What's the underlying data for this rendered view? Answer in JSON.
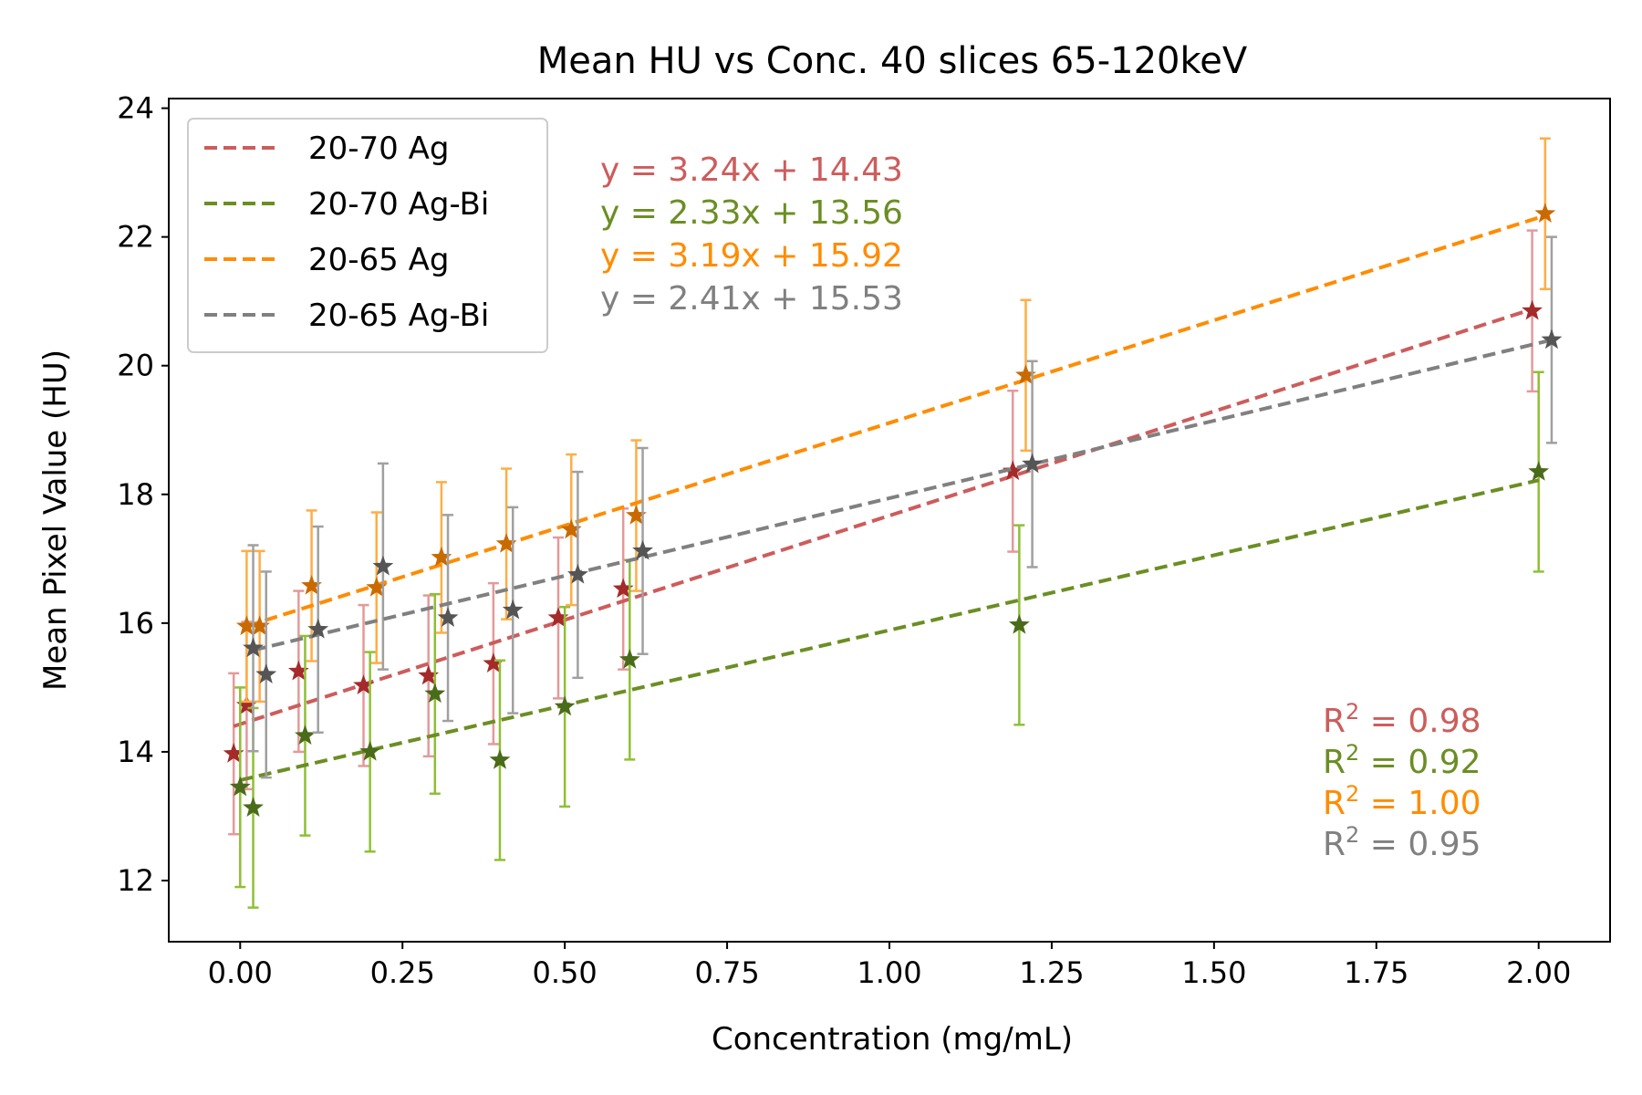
{
  "chart_data": {
    "type": "scatter",
    "title": "Mean HU vs Conc. 40 slices 65-120keV",
    "xlabel": "Concentration (mg/mL)",
    "ylabel": "Mean Pixel Value (HU)",
    "xlim": [
      -0.11,
      2.11
    ],
    "ylim": [
      11.05,
      24.15
    ],
    "xticks": [
      0,
      0.25,
      0.5,
      0.75,
      1.0,
      1.25,
      1.5,
      1.75,
      2.0
    ],
    "xtick_labels": [
      "0.00",
      "0.25",
      "0.50",
      "0.75",
      "1.00",
      "1.25",
      "1.50",
      "1.75",
      "2.00"
    ],
    "yticks": [
      12,
      14,
      16,
      18,
      20,
      22,
      24
    ],
    "ytick_labels": [
      "12",
      "14",
      "16",
      "18",
      "20",
      "22",
      "24"
    ],
    "legend_position": "top-left",
    "series": [
      {
        "name": "20-70 Ag",
        "line_color": "#cd5c5c",
        "marker_color": "#a52a2a",
        "err_color": "#e39a9a",
        "slope": 3.24,
        "intercept": 14.43,
        "equation": "y = 3.24x + 14.43",
        "r2": "0.98",
        "x": [
          -0.01,
          0.01,
          0.09,
          0.19,
          0.29,
          0.39,
          0.49,
          0.59,
          1.19,
          1.99
        ],
        "y": [
          13.97,
          14.72,
          15.25,
          15.03,
          15.18,
          15.37,
          16.08,
          16.53,
          18.36,
          20.85
        ],
        "err": [
          1.25,
          1.3,
          1.25,
          1.25,
          1.25,
          1.25,
          1.25,
          1.25,
          1.25,
          1.25
        ]
      },
      {
        "name": "20-70 Ag-Bi",
        "line_color": "#6b8e23",
        "marker_color": "#4a6b1a",
        "err_color": "#8fbf35",
        "slope": 2.33,
        "intercept": 13.56,
        "equation": "y = 2.33x + 13.56",
        "r2": "0.92",
        "x": [
          0.0,
          0.02,
          0.1,
          0.2,
          0.3,
          0.4,
          0.5,
          0.6,
          1.2,
          2.0
        ],
        "y": [
          13.45,
          13.13,
          14.25,
          14.0,
          14.9,
          13.87,
          14.7,
          15.43,
          15.97,
          18.35
        ],
        "err": [
          1.55,
          1.55,
          1.55,
          1.55,
          1.55,
          1.55,
          1.55,
          1.55,
          1.55,
          1.55
        ]
      },
      {
        "name": "20-65 Ag",
        "line_color": "#ff8c00",
        "marker_color": "#c96a00",
        "err_color": "#ffad45",
        "slope": 3.19,
        "intercept": 15.92,
        "equation": "y = 3.19x + 15.92",
        "r2": "1.00",
        "x": [
          0.01,
          0.03,
          0.11,
          0.21,
          0.31,
          0.41,
          0.51,
          0.61,
          1.21,
          2.01
        ],
        "y": [
          15.95,
          15.95,
          16.58,
          16.55,
          17.02,
          17.23,
          17.45,
          17.67,
          19.85,
          22.36
        ],
        "err": [
          1.17,
          1.17,
          1.17,
          1.17,
          1.17,
          1.17,
          1.17,
          1.17,
          1.17,
          1.17
        ]
      },
      {
        "name": "20-65 Ag-Bi",
        "line_color": "#808080",
        "marker_color": "#555555",
        "err_color": "#a0a0a0",
        "slope": 2.41,
        "intercept": 15.53,
        "equation": "y = 2.41x + 15.53",
        "r2": "0.95",
        "x": [
          0.02,
          0.04,
          0.12,
          0.22,
          0.32,
          0.42,
          0.52,
          0.62,
          1.22,
          2.02
        ],
        "y": [
          15.61,
          15.2,
          15.9,
          16.88,
          16.08,
          16.2,
          16.75,
          17.12,
          18.47,
          20.4
        ],
        "err": [
          1.6,
          1.6,
          1.6,
          1.6,
          1.6,
          1.6,
          1.6,
          1.6,
          1.6,
          1.6
        ]
      }
    ],
    "r2_label": "R",
    "r2_superscript": "2",
    "r2_separator": " = "
  }
}
